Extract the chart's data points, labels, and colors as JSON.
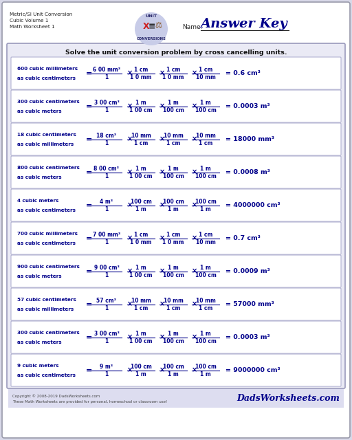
{
  "title_lines": [
    "Metric/SI Unit Conversion",
    "Cubic Volume 1",
    "Math Worksheet 1"
  ],
  "answer_key_text": "Answer Key",
  "name_label": "Name:",
  "instruction": "Solve the unit conversion problem by cross cancelling units.",
  "dark_blue": "#00008B",
  "rows": [
    {
      "label1": "600 cubic millimeters",
      "label2": "as cubic centimeters",
      "formula_num": "6 00 mm³",
      "formula_den": "1",
      "fracs": [
        [
          "1 cm",
          "1 0 mm"
        ],
        [
          "1 cm",
          "1 0 mm"
        ],
        [
          "1 cm",
          "10 mm"
        ]
      ],
      "result": "= 0.6 cm³"
    },
    {
      "label1": "300 cubic centimeters",
      "label2": "as cubic meters",
      "formula_num": "3 00 cm³",
      "formula_den": "1",
      "fracs": [
        [
          "1 m",
          "1 00 cm"
        ],
        [
          "1 m",
          "100 cm"
        ],
        [
          "1 m",
          "100 cm"
        ]
      ],
      "result": "= 0.0003 m³"
    },
    {
      "label1": "18 cubic centimeters",
      "label2": "as cubic millimeters",
      "formula_num": "18 cm³",
      "formula_den": "1",
      "fracs": [
        [
          "10 mm",
          "1 cm"
        ],
        [
          "10 mm",
          "1 cm"
        ],
        [
          "10 mm",
          "1 cm"
        ]
      ],
      "result": "= 18000 mm³"
    },
    {
      "label1": "800 cubic centimeters",
      "label2": "as cubic meters",
      "formula_num": "8 00 cm³",
      "formula_den": "1",
      "fracs": [
        [
          "1 m",
          "1 00 cm"
        ],
        [
          "1 m",
          "100 cm"
        ],
        [
          "1 m",
          "100 cm"
        ]
      ],
      "result": "= 0.0008 m³"
    },
    {
      "label1": "4 cubic meters",
      "label2": "as cubic centimeters",
      "formula_num": "4 m³",
      "formula_den": "1",
      "fracs": [
        [
          "100 cm",
          "1 m"
        ],
        [
          "100 cm",
          "1 m"
        ],
        [
          "100 cm",
          "1 m"
        ]
      ],
      "result": "= 4000000 cm³"
    },
    {
      "label1": "700 cubic millimeters",
      "label2": "as cubic centimeters",
      "formula_num": "7 00 mm³",
      "formula_den": "1",
      "fracs": [
        [
          "1 cm",
          "1 0 mm"
        ],
        [
          "1 cm",
          "1 0 mm"
        ],
        [
          "1 cm",
          "10 mm"
        ]
      ],
      "result": "= 0.7 cm³"
    },
    {
      "label1": "900 cubic centimeters",
      "label2": "as cubic meters",
      "formula_num": "9 00 cm³",
      "formula_den": "1",
      "fracs": [
        [
          "1 m",
          "1 00 cm"
        ],
        [
          "1 m",
          "100 cm"
        ],
        [
          "1 m",
          "100 cm"
        ]
      ],
      "result": "= 0.0009 m³"
    },
    {
      "label1": "57 cubic centimeters",
      "label2": "as cubic millimeters",
      "formula_num": "57 cm³",
      "formula_den": "1",
      "fracs": [
        [
          "10 mm",
          "1 cm"
        ],
        [
          "10 mm",
          "1 cm"
        ],
        [
          "10 mm",
          "1 cm"
        ]
      ],
      "result": "= 57000 mm³"
    },
    {
      "label1": "300 cubic centimeters",
      "label2": "as cubic meters",
      "formula_num": "3 00 cm³",
      "formula_den": "1",
      "fracs": [
        [
          "1 m",
          "1 00 cm"
        ],
        [
          "1 m",
          "100 cm"
        ],
        [
          "1 m",
          "100 cm"
        ]
      ],
      "result": "= 0.0003 m³"
    },
    {
      "label1": "9 cubic meters",
      "label2": "as cubic centimeters",
      "formula_num": "9 m³",
      "formula_den": "1",
      "fracs": [
        [
          "100 cm",
          "1 m"
        ],
        [
          "100 cm",
          "1 m"
        ],
        [
          "100 cm",
          "1 m"
        ]
      ],
      "result": "= 9000000 cm³"
    }
  ],
  "footer_left_line1": "Copyright © 2008-2019 DadsWorksheets.com",
  "footer_left_line2": "These Math Worksheets are provided for personal, homeschool or classroom use!",
  "footer_right": "DadsWorksheets.com"
}
